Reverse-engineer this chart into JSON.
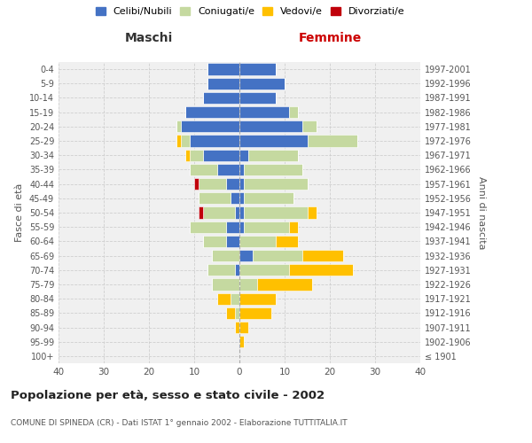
{
  "age_groups": [
    "100+",
    "95-99",
    "90-94",
    "85-89",
    "80-84",
    "75-79",
    "70-74",
    "65-69",
    "60-64",
    "55-59",
    "50-54",
    "45-49",
    "40-44",
    "35-39",
    "30-34",
    "25-29",
    "20-24",
    "15-19",
    "10-14",
    "5-9",
    "0-4"
  ],
  "birth_years": [
    "≤ 1901",
    "1902-1906",
    "1907-1911",
    "1912-1916",
    "1917-1921",
    "1922-1926",
    "1927-1931",
    "1932-1936",
    "1937-1941",
    "1942-1946",
    "1947-1951",
    "1952-1956",
    "1957-1961",
    "1962-1966",
    "1967-1971",
    "1972-1976",
    "1977-1981",
    "1982-1986",
    "1987-1991",
    "1992-1996",
    "1997-2001"
  ],
  "male": {
    "celibi": [
      0,
      0,
      0,
      0,
      0,
      0,
      1,
      0,
      3,
      3,
      1,
      2,
      3,
      5,
      8,
      11,
      13,
      12,
      8,
      7,
      7
    ],
    "coniugati": [
      0,
      0,
      0,
      1,
      2,
      6,
      6,
      6,
      5,
      8,
      7,
      7,
      6,
      6,
      3,
      2,
      1,
      0,
      0,
      0,
      0
    ],
    "vedovi": [
      0,
      0,
      1,
      2,
      3,
      0,
      0,
      0,
      0,
      0,
      0,
      0,
      0,
      0,
      1,
      1,
      0,
      0,
      0,
      0,
      0
    ],
    "divorziati": [
      0,
      0,
      0,
      0,
      0,
      0,
      0,
      0,
      0,
      0,
      1,
      0,
      1,
      0,
      0,
      0,
      0,
      0,
      0,
      0,
      0
    ]
  },
  "female": {
    "nubili": [
      0,
      0,
      0,
      0,
      0,
      0,
      0,
      3,
      0,
      1,
      1,
      1,
      1,
      1,
      2,
      15,
      14,
      11,
      8,
      10,
      8
    ],
    "coniugate": [
      0,
      0,
      0,
      0,
      0,
      4,
      11,
      11,
      8,
      10,
      14,
      11,
      14,
      13,
      11,
      11,
      3,
      2,
      0,
      0,
      0
    ],
    "vedove": [
      0,
      1,
      2,
      7,
      8,
      12,
      14,
      9,
      5,
      2,
      2,
      0,
      0,
      0,
      0,
      0,
      0,
      0,
      0,
      0,
      0
    ],
    "divorziate": [
      0,
      0,
      0,
      0,
      0,
      0,
      0,
      0,
      0,
      0,
      0,
      0,
      0,
      0,
      0,
      0,
      0,
      0,
      0,
      0,
      0
    ]
  },
  "colors": {
    "celibi": "#4472c4",
    "coniugati": "#c5d9a0",
    "vedovi": "#ffc000",
    "divorziati": "#c0000b"
  },
  "title": "Popolazione per età, sesso e stato civile - 2002",
  "subtitle": "COMUNE DI SPINEDA (CR) - Dati ISTAT 1° gennaio 2002 - Elaborazione TUTTITALIA.IT",
  "xlabel_left": "Maschi",
  "xlabel_right": "Femmine",
  "ylabel_left": "Fasce di età",
  "ylabel_right": "Anni di nascita",
  "xlim": 40,
  "legend_labels": [
    "Celibi/Nubili",
    "Coniugati/e",
    "Vedovi/e",
    "Divorziati/e"
  ],
  "bg_color": "#ffffff",
  "grid_color": "#cccccc"
}
